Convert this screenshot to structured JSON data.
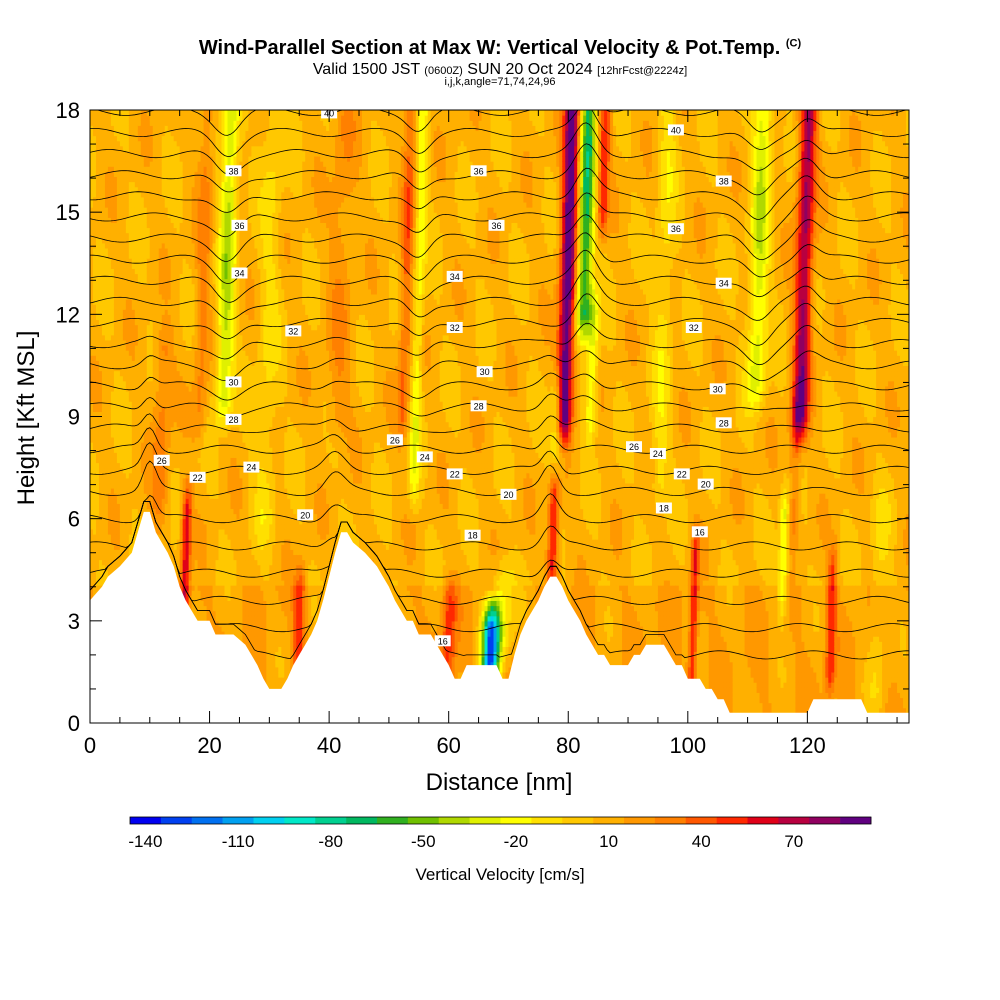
{
  "title": {
    "main": "Wind-Parallel Section at Max W: Vertical Velocity & Pot.Temp.",
    "mark": "(C)",
    "valid_prefix": "Valid 1500 JST",
    "valid_utc": "(0600Z)",
    "valid_date": "SUN 20 Oct 2024",
    "forecast": "[12hrFcst@2224z]",
    "indices": "i,j,k,angle=71,74,24,96"
  },
  "chart_data": {
    "type": "heatmap",
    "xlabel": "Distance [nm]",
    "ylabel": "Height [Kft MSL]",
    "xlim": [
      0,
      137
    ],
    "ylim": [
      0,
      18
    ],
    "x_ticks": [
      "0",
      "20",
      "40",
      "60",
      "80",
      "100",
      "120"
    ],
    "x_tick_values": [
      0,
      20,
      40,
      60,
      80,
      100,
      120
    ],
    "y_ticks": [
      "0",
      "3",
      "6",
      "9",
      "12",
      "15",
      "18"
    ],
    "y_tick_values": [
      0,
      3,
      6,
      9,
      12,
      15,
      18
    ],
    "colorbar": {
      "title": "Vertical Velocity [cm/s]",
      "labels": [
        "-140",
        "-110",
        "-80",
        "-50",
        "-20",
        "10",
        "40",
        "70"
      ],
      "label_values": [
        -140,
        -110,
        -80,
        -50,
        -20,
        10,
        40,
        70
      ],
      "range": [
        -145,
        95
      ],
      "step": 10,
      "colors": [
        "#0000f0",
        "#0040f0",
        "#0070f0",
        "#00a0f0",
        "#00d0f0",
        "#00e8c8",
        "#00d090",
        "#00b860",
        "#30b020",
        "#70c000",
        "#b0d800",
        "#e0f000",
        "#ffff00",
        "#ffe000",
        "#ffc800",
        "#ffb000",
        "#ff9800",
        "#ff8000",
        "#ff5800",
        "#ff2800",
        "#e00018",
        "#b80040",
        "#900060",
        "#600080"
      ]
    },
    "terrain": {
      "x": [
        0,
        2,
        3,
        5,
        7,
        8,
        9,
        10,
        11,
        12,
        13,
        14,
        15,
        16,
        17,
        18,
        19,
        20,
        21,
        22,
        24,
        26,
        27,
        28,
        29,
        30,
        31,
        32,
        33,
        34,
        35,
        36,
        37,
        38,
        39,
        40,
        41,
        42,
        43,
        44,
        46,
        48,
        49,
        50,
        51,
        52,
        53,
        54,
        55,
        56,
        57,
        58,
        59,
        60,
        61,
        62,
        63,
        64,
        65,
        66,
        67,
        68,
        69,
        70,
        71,
        72,
        73,
        74,
        75,
        76,
        77,
        78,
        79,
        80,
        81,
        82,
        83,
        84,
        85,
        86,
        87,
        88,
        89,
        90,
        91,
        92,
        93,
        94,
        95,
        96,
        97,
        98,
        99,
        100,
        101,
        102,
        103,
        104,
        105,
        106,
        107,
        108,
        109,
        110,
        112,
        114,
        116,
        118,
        120,
        121,
        122,
        124,
        126,
        128,
        129,
        130,
        131,
        132,
        134,
        136,
        137
      ],
      "y": [
        3.6,
        4.0,
        4.3,
        4.6,
        5.0,
        5.6,
        6.2,
        6.2,
        5.6,
        5.3,
        5.0,
        4.6,
        4.0,
        3.6,
        3.3,
        3.0,
        3.0,
        3.0,
        2.6,
        2.6,
        2.6,
        2.3,
        2.0,
        1.7,
        1.3,
        1.0,
        1.0,
        1.0,
        1.3,
        1.7,
        2.0,
        2.3,
        2.6,
        3.0,
        3.6,
        4.3,
        5.0,
        5.6,
        5.6,
        5.3,
        5.0,
        4.6,
        4.3,
        4.0,
        3.6,
        3.3,
        3.0,
        3.0,
        2.6,
        2.6,
        2.6,
        2.3,
        2.0,
        1.7,
        1.3,
        1.3,
        1.7,
        1.7,
        1.7,
        1.7,
        1.7,
        1.7,
        1.3,
        1.3,
        2.0,
        2.6,
        3.0,
        3.3,
        3.6,
        4.0,
        4.3,
        4.3,
        4.0,
        3.6,
        3.3,
        3.0,
        2.6,
        2.3,
        2.0,
        2.0,
        1.7,
        1.7,
        1.7,
        1.7,
        2.0,
        2.0,
        2.3,
        2.3,
        2.3,
        2.3,
        2.0,
        1.7,
        1.7,
        1.3,
        1.3,
        1.3,
        1.0,
        1.0,
        0.7,
        0.7,
        0.3,
        0.3,
        0.3,
        0.3,
        0.3,
        0.3,
        0.3,
        0.3,
        0.3,
        0.7,
        0.7,
        0.7,
        0.7,
        0.7,
        0.7,
        0.3,
        0.3,
        0.3,
        0.3,
        0.3,
        0.3
      ]
    },
    "theta_levels": [
      16,
      17,
      18,
      19,
      20,
      21,
      22,
      23,
      24,
      25,
      26,
      27,
      28,
      29,
      30,
      31,
      32,
      33,
      34,
      35,
      36,
      37,
      38,
      39,
      40
    ],
    "contour_labels": [
      {
        "text": "40",
        "x": 40,
        "y": 17.9
      },
      {
        "text": "38",
        "x": 24,
        "y": 16.2
      },
      {
        "text": "36",
        "x": 25,
        "y": 14.6
      },
      {
        "text": "34",
        "x": 25,
        "y": 13.2
      },
      {
        "text": "32",
        "x": 34,
        "y": 11.5
      },
      {
        "text": "30",
        "x": 24,
        "y": 10.0
      },
      {
        "text": "28",
        "x": 24,
        "y": 8.9
      },
      {
        "text": "26",
        "x": 12,
        "y": 7.7
      },
      {
        "text": "24",
        "x": 27,
        "y": 7.5
      },
      {
        "text": "22",
        "x": 18,
        "y": 7.2
      },
      {
        "text": "20",
        "x": 36,
        "y": 6.1
      },
      {
        "text": "16",
        "x": 59,
        "y": 2.4
      },
      {
        "text": "18",
        "x": 64,
        "y": 5.5
      },
      {
        "text": "20",
        "x": 70,
        "y": 6.7
      },
      {
        "text": "22",
        "x": 61,
        "y": 7.3
      },
      {
        "text": "24",
        "x": 56,
        "y": 7.8
      },
      {
        "text": "26",
        "x": 51,
        "y": 8.3
      },
      {
        "text": "28",
        "x": 65,
        "y": 9.3
      },
      {
        "text": "30",
        "x": 66,
        "y": 10.3
      },
      {
        "text": "32",
        "x": 61,
        "y": 11.6
      },
      {
        "text": "34",
        "x": 61,
        "y": 13.1
      },
      {
        "text": "36",
        "x": 68,
        "y": 14.6
      },
      {
        "text": "36",
        "x": 65,
        "y": 16.2
      },
      {
        "text": "26",
        "x": 91,
        "y": 8.1
      },
      {
        "text": "24",
        "x": 95,
        "y": 7.9
      },
      {
        "text": "22",
        "x": 99,
        "y": 7.3
      },
      {
        "text": "20",
        "x": 103,
        "y": 7.0
      },
      {
        "text": "18",
        "x": 96,
        "y": 6.3
      },
      {
        "text": "16",
        "x": 102,
        "y": 5.6
      },
      {
        "text": "28",
        "x": 106,
        "y": 8.8
      },
      {
        "text": "30",
        "x": 105,
        "y": 9.8
      },
      {
        "text": "32",
        "x": 101,
        "y": 11.6
      },
      {
        "text": "34",
        "x": 106,
        "y": 12.9
      },
      {
        "text": "36",
        "x": 98,
        "y": 14.5
      },
      {
        "text": "38",
        "x": 106,
        "y": 15.9
      },
      {
        "text": "40",
        "x": 98,
        "y": 17.4
      }
    ],
    "w_features": [
      {
        "x": 23,
        "sigma": 1.4,
        "amp": -45,
        "ybot": 9.5,
        "ytop": 18
      },
      {
        "x": 16,
        "sigma": 0.8,
        "amp": 55,
        "ybot": 3.2,
        "ytop": 6.3
      },
      {
        "x": 35,
        "sigma": 1.0,
        "amp": 35,
        "ybot": 2.0,
        "ytop": 4.0
      },
      {
        "x": 12,
        "sigma": 1.5,
        "amp": 22,
        "ybot": 6.5,
        "ytop": 11
      },
      {
        "x": 19,
        "sigma": 1.2,
        "amp": 20,
        "ybot": 9,
        "ytop": 18
      },
      {
        "x": 30,
        "sigma": 1.8,
        "amp": -15,
        "ybot": 6,
        "ytop": 18
      },
      {
        "x": 42,
        "sigma": 2.0,
        "amp": 15,
        "ybot": 9,
        "ytop": 18
      },
      {
        "x": 55,
        "sigma": 0.9,
        "amp": -28,
        "ybot": 7,
        "ytop": 18
      },
      {
        "x": 53,
        "sigma": 1.0,
        "amp": 30,
        "ybot": 9,
        "ytop": 18
      },
      {
        "x": 60,
        "sigma": 1.2,
        "amp": 35,
        "ybot": 1.5,
        "ytop": 3.5
      },
      {
        "x": 67,
        "sigma": 1.4,
        "amp": -130,
        "ybot": 1.2,
        "ytop": 2.8
      },
      {
        "x": 69,
        "sigma": 1.8,
        "amp": -30,
        "ybot": 2.5,
        "ytop": 4.0
      },
      {
        "x": 77.5,
        "sigma": 0.9,
        "amp": 55,
        "ybot": 4.5,
        "ytop": 7.0
      },
      {
        "x": 78,
        "sigma": 1.0,
        "amp": -35,
        "ybot": 7.5,
        "ytop": 9.5
      },
      {
        "x": 80,
        "sigma": 1.3,
        "amp": 90,
        "ybot": 9,
        "ytop": 18
      },
      {
        "x": 83,
        "sigma": 1.3,
        "amp": -75,
        "ybot": 12,
        "ytop": 18
      },
      {
        "x": 84,
        "sigma": 1.0,
        "amp": -35,
        "ybot": 9,
        "ytop": 12
      },
      {
        "x": 86,
        "sigma": 0.9,
        "amp": 45,
        "ybot": 15,
        "ytop": 18
      },
      {
        "x": 96,
        "sigma": 1.5,
        "amp": -18,
        "ybot": 7,
        "ytop": 18
      },
      {
        "x": 101,
        "sigma": 0.7,
        "amp": 45,
        "ybot": 1.5,
        "ytop": 5.0
      },
      {
        "x": 112,
        "sigma": 1.6,
        "amp": -40,
        "ybot": 10,
        "ytop": 18
      },
      {
        "x": 116,
        "sigma": 0.8,
        "amp": -38,
        "ybot": 3.8,
        "ytop": 6.2
      },
      {
        "x": 119.5,
        "sigma": 1.4,
        "amp": 70,
        "ybot": 9,
        "ytop": 18
      },
      {
        "x": 118,
        "sigma": 1.0,
        "amp": 25,
        "ybot": 6,
        "ytop": 9
      },
      {
        "x": 124,
        "sigma": 0.8,
        "amp": 40,
        "ybot": 1.5,
        "ytop": 4.5
      },
      {
        "x": 132,
        "sigma": 1.6,
        "amp": -15,
        "ybot": 1,
        "ytop": 6
      }
    ]
  }
}
